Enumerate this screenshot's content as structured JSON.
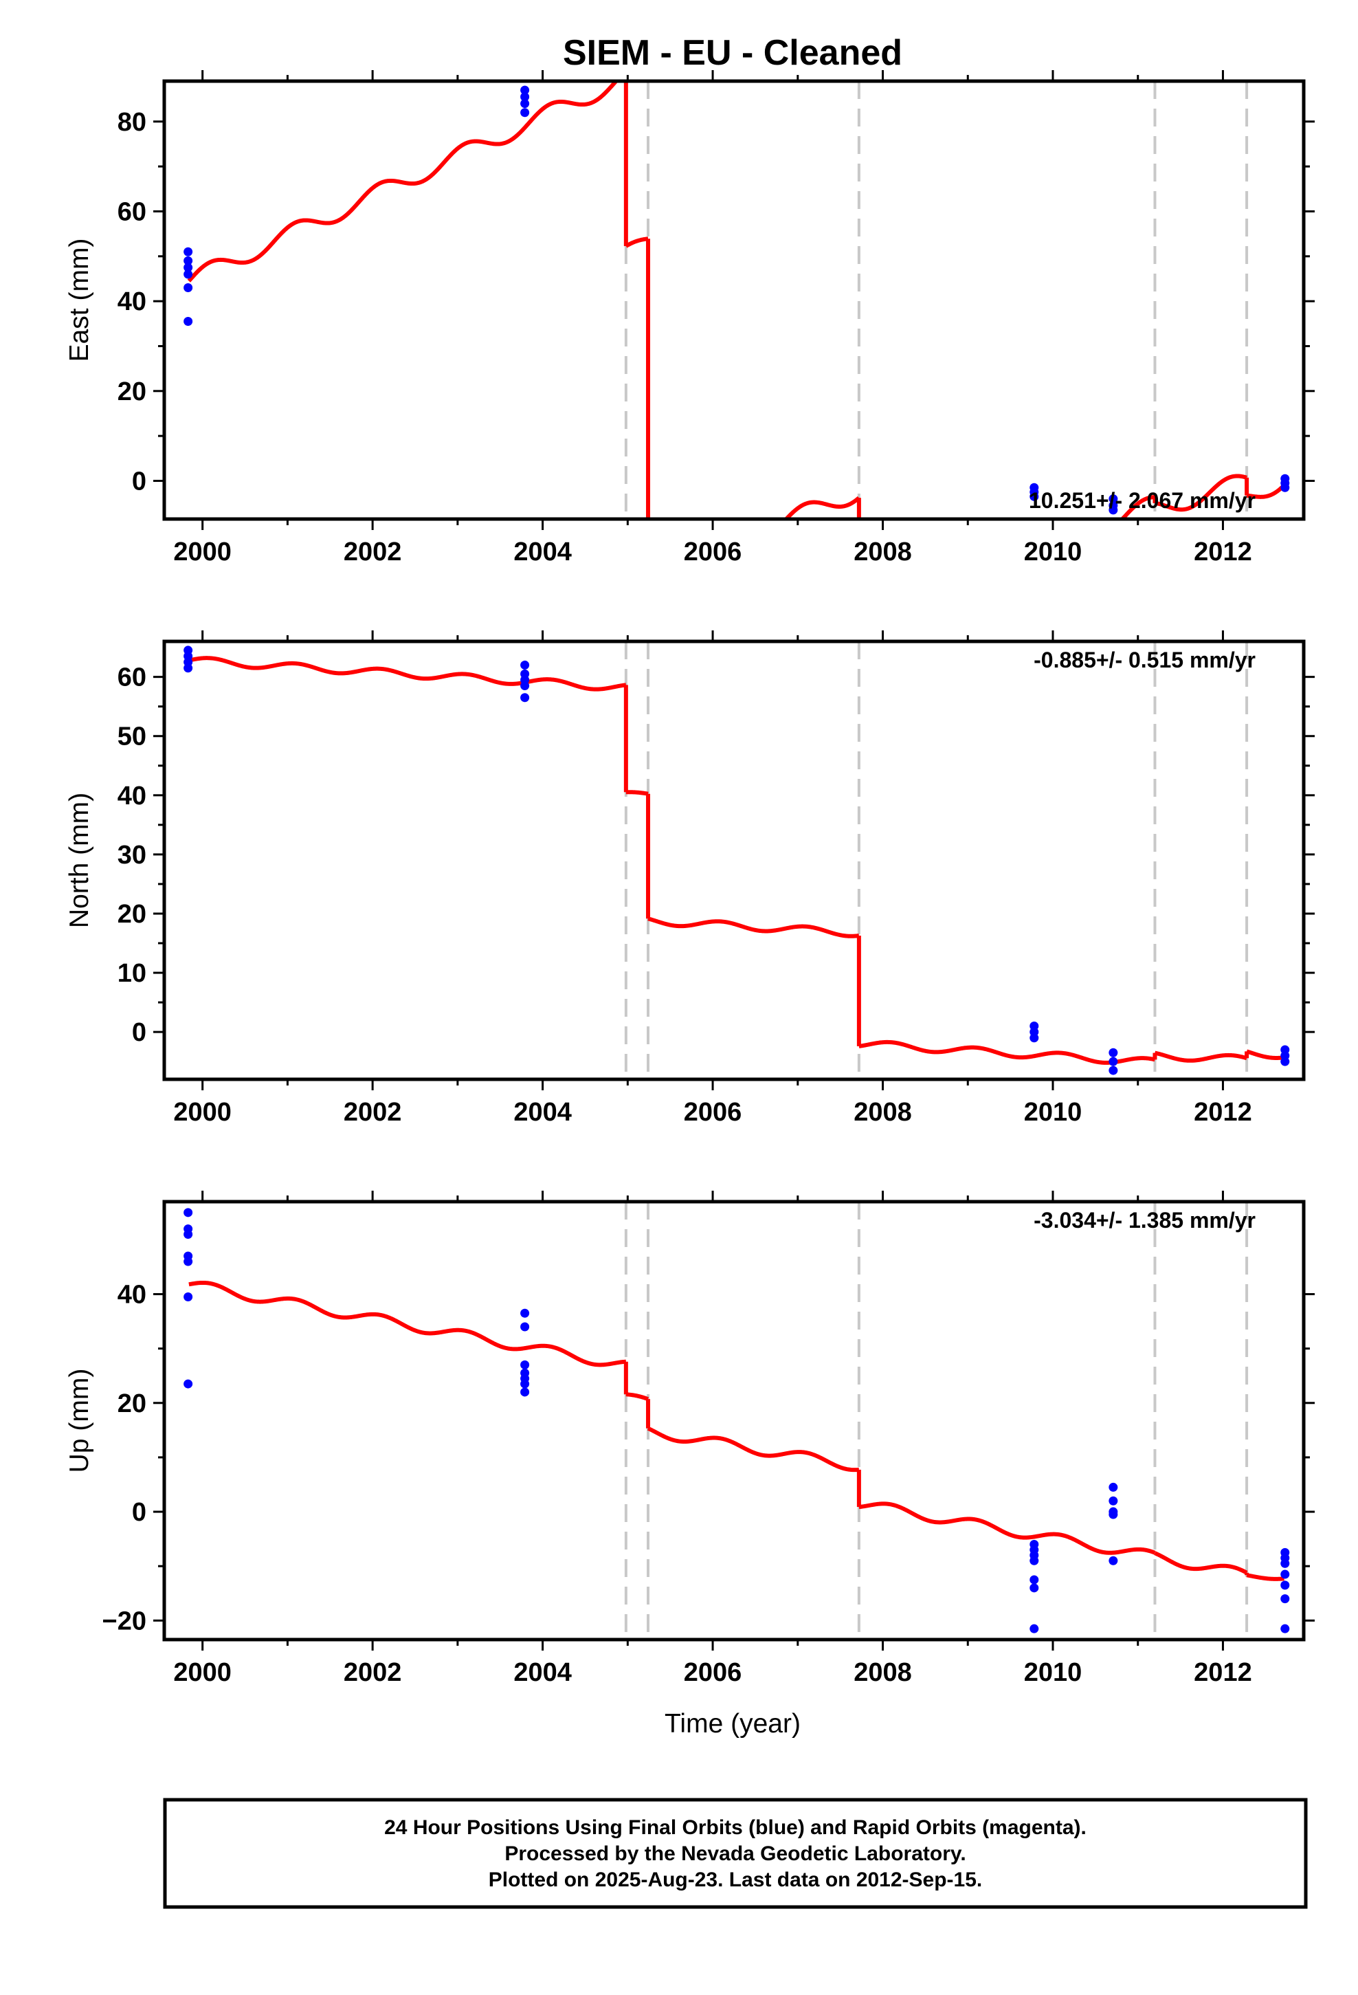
{
  "title": "SIEM  - EU - Cleaned",
  "x_label": "Time (year)",
  "footer": {
    "line1": "24 Hour Positions Using Final Orbits (blue) and Rapid Orbits (magenta).",
    "line2": "Processed by the Nevada Geodetic Laboratory.",
    "line3": "Plotted on 2025-Aug-23. Last data on 2012-Sep-15."
  },
  "colors": {
    "model": "#ff0000",
    "final_orbits": "#0000ff",
    "event_lines": "#c8c8c8"
  },
  "chart_data": [
    {
      "type": "line",
      "ylabel": "East (mm)",
      "rate": "10.251+/- 2.067 mm/yr",
      "xlim": [
        1999.55,
        2012.95
      ],
      "ylim": [
        -8.5,
        89
      ],
      "xticks": [
        2000,
        2002,
        2004,
        2006,
        2008,
        2010,
        2012
      ],
      "yticks": [
        0,
        20,
        40,
        60,
        80
      ],
      "event_lines": [
        2004.98,
        2005.24,
        2007.72,
        2011.2,
        2012.28
      ],
      "model_segments": [
        {
          "start": 1999.84,
          "end": 2004.98,
          "offset": 44.5,
          "rate": 8.8,
          "amp": 2.0
        },
        {
          "start": 2004.98,
          "end": 2005.24,
          "offset": 51.5,
          "rate": 7.0,
          "amp": 1.0
        },
        {
          "start": 2005.24,
          "end": 2007.72,
          "offset": -21.0,
          "rate": 7.5,
          "amp": 2.0
        },
        {
          "start": 2007.72,
          "end": 2011.2,
          "offset": -33.0,
          "rate": 8.0,
          "amp": 2.0
        },
        {
          "start": 2011.2,
          "end": 2012.28,
          "offset": -6.5,
          "rate": 6.0,
          "amp": 2.0
        },
        {
          "start": 2012.28,
          "end": 2012.72,
          "offset": -4.0,
          "rate": 10.0,
          "amp": 2.0
        }
      ],
      "points": [
        [
          1999.83,
          51
        ],
        [
          1999.83,
          49
        ],
        [
          1999.83,
          47.5
        ],
        [
          1999.83,
          46
        ],
        [
          1999.83,
          43
        ],
        [
          1999.83,
          35.5
        ],
        [
          2003.79,
          87
        ],
        [
          2003.79,
          85.5
        ],
        [
          2003.79,
          84
        ],
        [
          2003.79,
          82
        ],
        [
          2009.78,
          -1.5
        ],
        [
          2009.78,
          -2.5
        ],
        [
          2009.78,
          -3.5
        ],
        [
          2010.71,
          -4
        ],
        [
          2010.71,
          -5.5
        ],
        [
          2010.71,
          -6.5
        ],
        [
          2012.73,
          0.5
        ],
        [
          2012.73,
          -0.5
        ],
        [
          2012.73,
          -1.5
        ]
      ]
    },
    {
      "type": "line",
      "ylabel": "North (mm)",
      "rate": "-0.885+/- 0.515 mm/yr",
      "xlim": [
        1999.55,
        2012.95
      ],
      "ylim": [
        -8,
        66
      ],
      "xticks": [
        2000,
        2002,
        2004,
        2006,
        2008,
        2010,
        2012
      ],
      "yticks": [
        0,
        10,
        20,
        30,
        40,
        50,
        60
      ],
      "event_lines": [
        2004.98,
        2005.24,
        2007.72,
        2011.2,
        2012.28
      ],
      "model_segments": [
        {
          "start": 1999.84,
          "end": 2004.98,
          "offset": 62.8,
          "rate": -0.9,
          "amp": 0.6
        },
        {
          "start": 2004.98,
          "end": 2005.24,
          "offset": 40.3,
          "rate": -0.9,
          "amp": 0.3
        },
        {
          "start": 2005.24,
          "end": 2007.72,
          "offset": 18.8,
          "rate": -0.85,
          "amp": 0.6
        },
        {
          "start": 2007.72,
          "end": 2011.2,
          "offset": -2.0,
          "rate": -0.9,
          "amp": 0.6
        },
        {
          "start": 2011.2,
          "end": 2012.28,
          "offset": -4.0,
          "rate": -0.6,
          "amp": 0.6
        },
        {
          "start": 2012.28,
          "end": 2012.72,
          "offset": -3.5,
          "rate": -0.9,
          "amp": 0.6
        }
      ],
      "points": [
        [
          1999.83,
          64.5
        ],
        [
          1999.83,
          63.5
        ],
        [
          1999.83,
          62.5
        ],
        [
          1999.83,
          61.5
        ],
        [
          2003.79,
          62
        ],
        [
          2003.79,
          60.5
        ],
        [
          2003.79,
          59.5
        ],
        [
          2003.79,
          58.5
        ],
        [
          2003.79,
          56.5
        ],
        [
          2009.78,
          1
        ],
        [
          2009.78,
          0
        ],
        [
          2009.78,
          -1
        ],
        [
          2010.71,
          -3.5
        ],
        [
          2010.71,
          -5
        ],
        [
          2010.71,
          -6.5
        ],
        [
          2012.73,
          -3
        ],
        [
          2012.73,
          -4
        ],
        [
          2012.73,
          -5
        ]
      ]
    },
    {
      "type": "line",
      "ylabel": "Up (mm)",
      "xlabel": "Time (year)",
      "rate": "-3.034+/- 1.385 mm/yr",
      "xlim": [
        1999.55,
        2012.95
      ],
      "ylim": [
        -23.5,
        57
      ],
      "xticks": [
        2000,
        2002,
        2004,
        2006,
        2008,
        2010,
        2012
      ],
      "yticks": [
        -20,
        0,
        20,
        40
      ],
      "event_lines": [
        2004.98,
        2005.24,
        2007.72,
        2011.2,
        2012.28
      ],
      "model_segments": [
        {
          "start": 1999.84,
          "end": 2004.98,
          "offset": 41.8,
          "rate": -2.9,
          "amp": 0.9
        },
        {
          "start": 2004.98,
          "end": 2005.24,
          "offset": 21.2,
          "rate": -3.0,
          "amp": 0.5
        },
        {
          "start": 2005.24,
          "end": 2007.72,
          "offset": 14.8,
          "rate": -2.6,
          "amp": 0.9
        },
        {
          "start": 2007.72,
          "end": 2011.2,
          "offset": 1.5,
          "rate": -2.8,
          "amp": 0.9
        },
        {
          "start": 2011.2,
          "end": 2012.28,
          "offset": -8.3,
          "rate": -3.0,
          "amp": 0.9
        },
        {
          "start": 2012.28,
          "end": 2012.72,
          "offset": -11.8,
          "rate": -0.5,
          "amp": 0.4
        }
      ],
      "points": [
        [
          1999.83,
          55
        ],
        [
          1999.83,
          52
        ],
        [
          1999.83,
          51
        ],
        [
          1999.83,
          47
        ],
        [
          1999.83,
          46
        ],
        [
          1999.83,
          39.5
        ],
        [
          1999.83,
          23.5
        ],
        [
          2003.79,
          36.5
        ],
        [
          2003.79,
          34
        ],
        [
          2003.79,
          27
        ],
        [
          2003.79,
          25.5
        ],
        [
          2003.79,
          24.5
        ],
        [
          2003.79,
          23.5
        ],
        [
          2003.79,
          22
        ],
        [
          2009.78,
          -6
        ],
        [
          2009.78,
          -7
        ],
        [
          2009.78,
          -8
        ],
        [
          2009.78,
          -9
        ],
        [
          2009.78,
          -12.5
        ],
        [
          2009.78,
          -14
        ],
        [
          2009.78,
          -21.5
        ],
        [
          2010.71,
          4.5
        ],
        [
          2010.71,
          2
        ],
        [
          2010.71,
          0
        ],
        [
          2010.71,
          -0.5
        ],
        [
          2010.71,
          -9
        ],
        [
          2012.73,
          -7.5
        ],
        [
          2012.73,
          -8.5
        ],
        [
          2012.73,
          -9.5
        ],
        [
          2012.73,
          -11.5
        ],
        [
          2012.73,
          -13.5
        ],
        [
          2012.73,
          -16
        ],
        [
          2012.73,
          -21.5
        ]
      ]
    }
  ]
}
